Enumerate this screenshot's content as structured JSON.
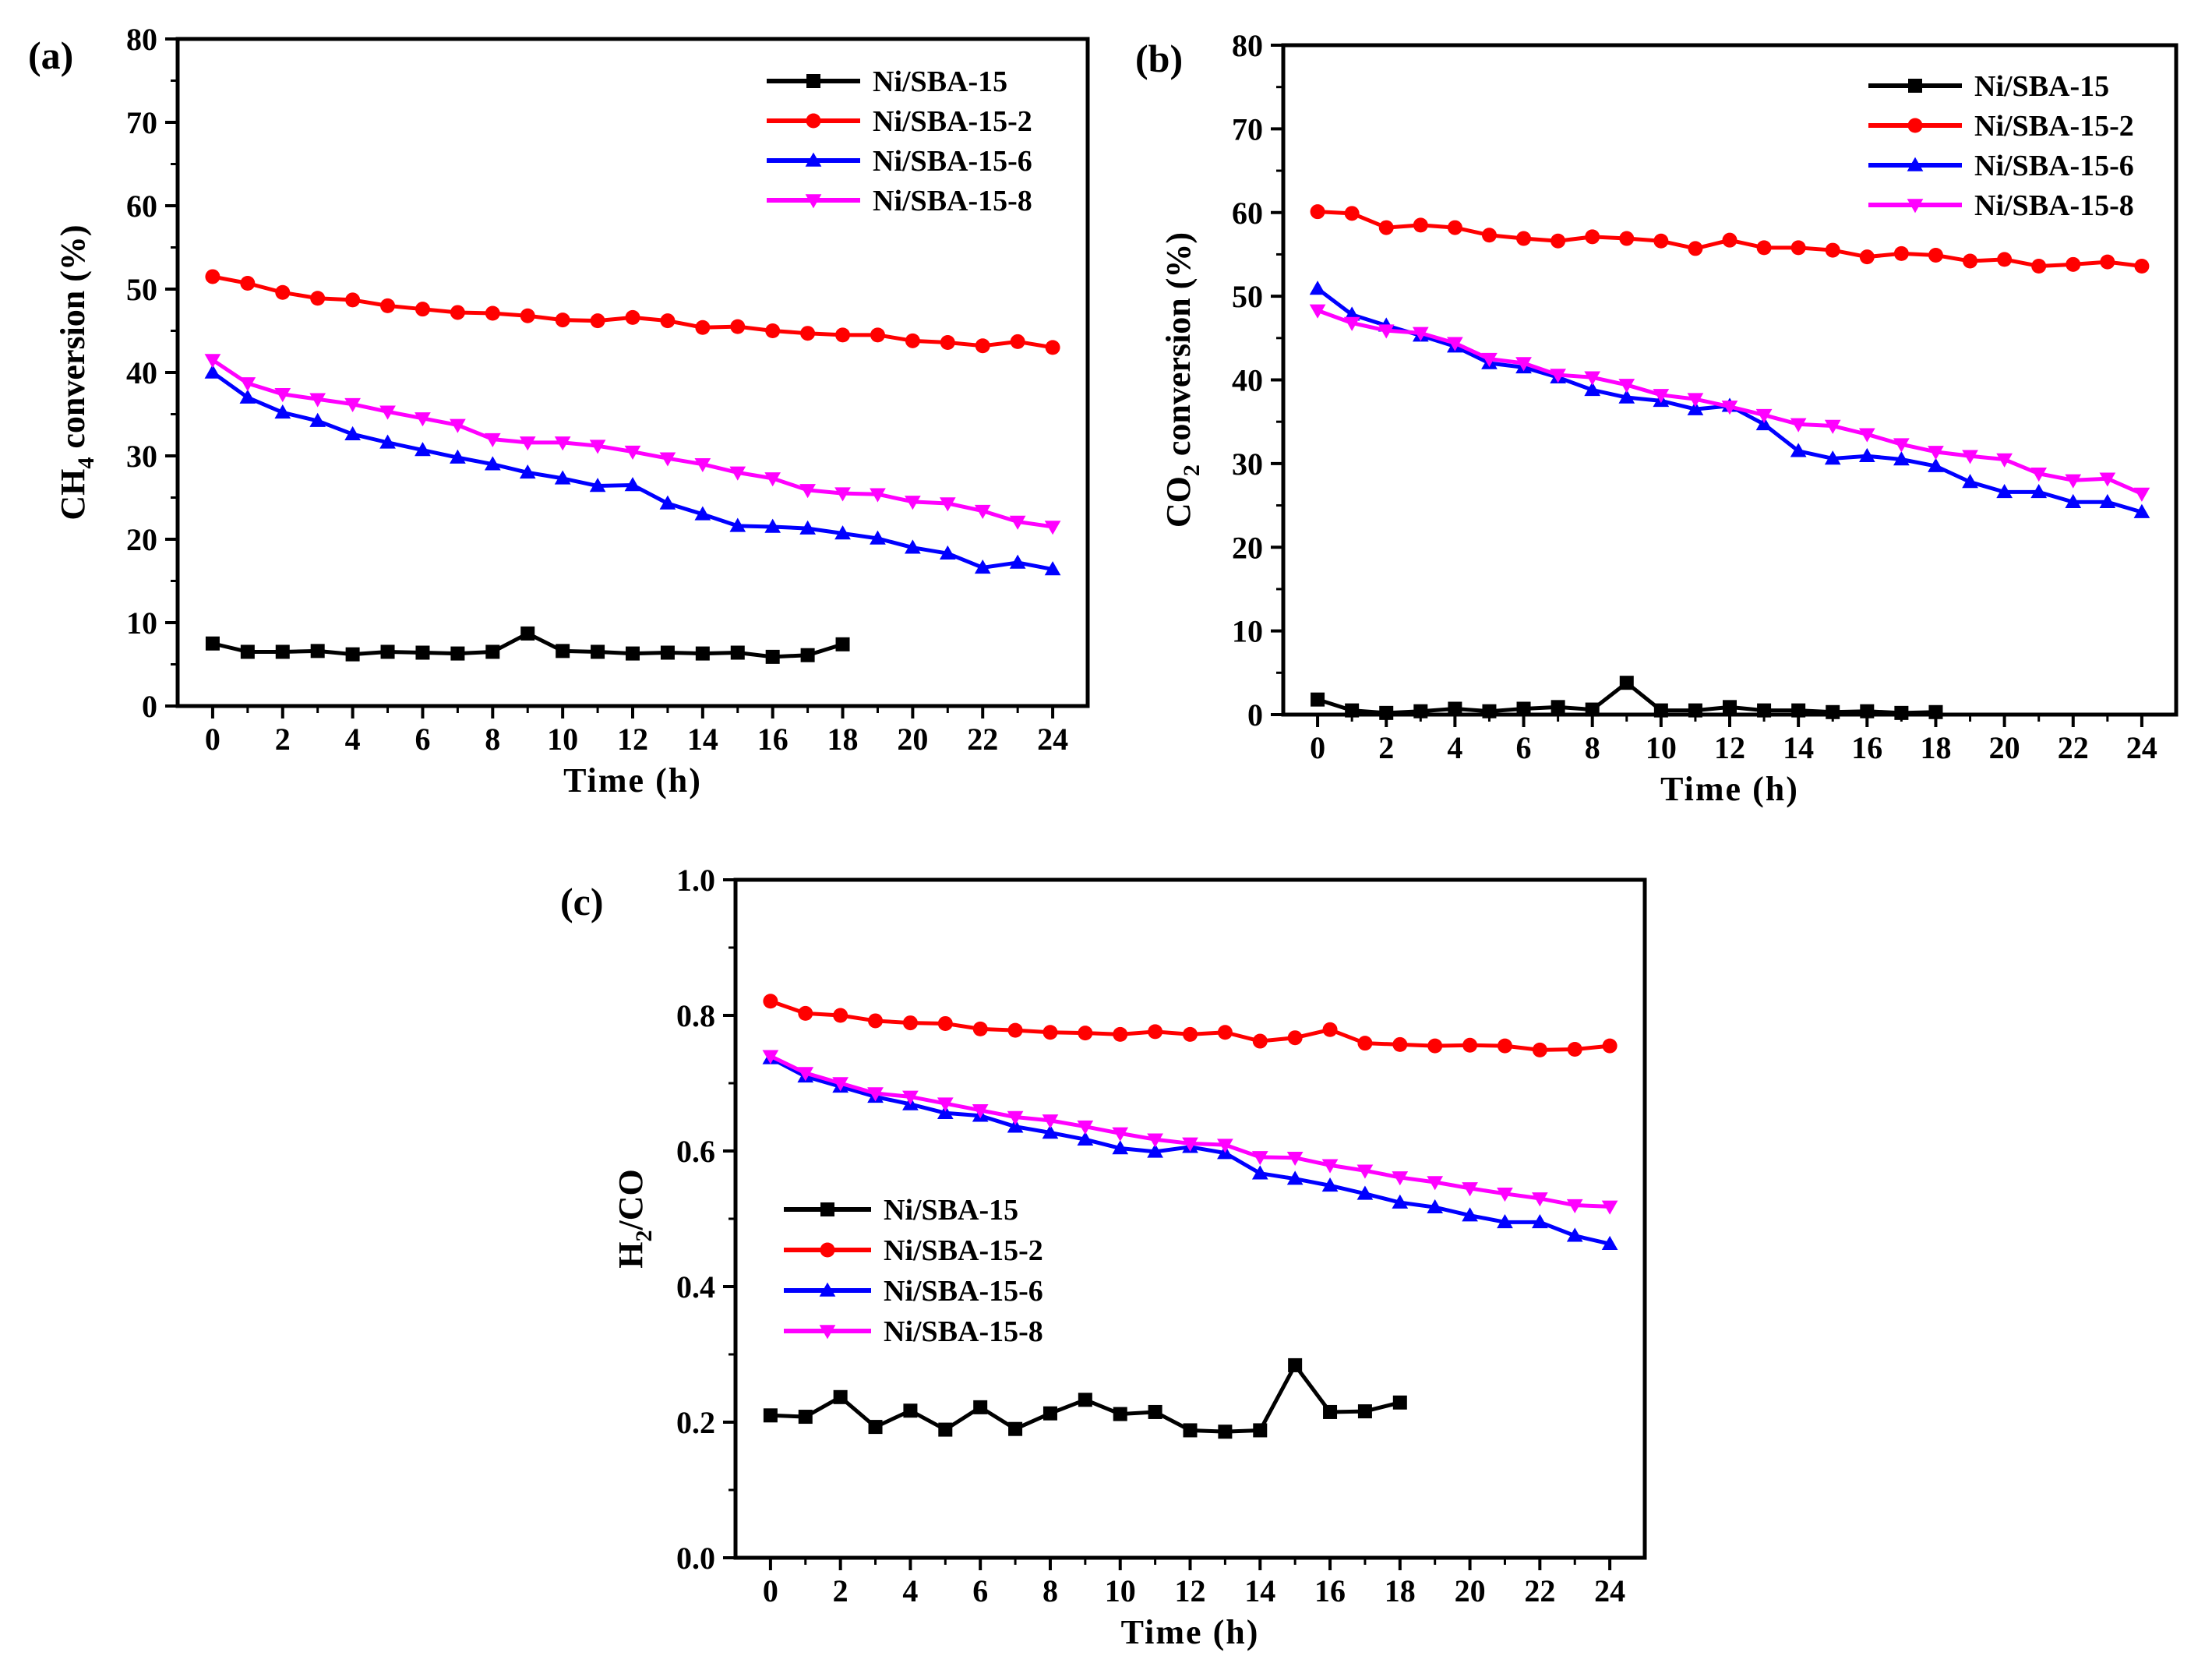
{
  "colors": {
    "Ni/SBA-15": "#000000",
    "Ni/SBA-15-2": "#ff0000",
    "Ni/SBA-15-6": "#0000ff",
    "Ni/SBA-15-8": "#ff00ff"
  },
  "chart_data": [
    {
      "panel": "(a)",
      "type": "line",
      "title": "",
      "xlabel": "Time (h)",
      "ylabel": "CH4 conversion (%)",
      "ylabel_main": "CH",
      "ylabel_sub": "4",
      "ylabel_rest": " conversion (%)",
      "xlim": [
        -1,
        25
      ],
      "ylim": [
        0,
        80
      ],
      "xticks": [
        0,
        2,
        4,
        6,
        8,
        10,
        12,
        14,
        16,
        18,
        20,
        22,
        24
      ],
      "yticks": [
        0,
        10,
        20,
        30,
        40,
        50,
        60,
        70,
        80
      ],
      "legend_position": "top-right",
      "series": [
        {
          "name": "Ni/SBA-15",
          "marker": "square",
          "x": [
            0,
            1,
            2,
            3,
            4,
            5,
            6,
            7,
            8,
            9,
            10,
            11,
            12,
            13,
            14,
            15,
            16,
            17,
            18
          ],
          "values": [
            7.5,
            6.5,
            6.5,
            6.6,
            6.2,
            6.5,
            6.4,
            6.3,
            6.5,
            8.7,
            6.6,
            6.5,
            6.3,
            6.4,
            6.3,
            6.4,
            5.9,
            6.1,
            7.4
          ]
        },
        {
          "name": "Ni/SBA-15-2",
          "marker": "circle",
          "x": [
            0,
            1,
            2,
            3,
            4,
            5,
            6,
            7,
            8,
            9,
            10,
            11,
            12,
            13,
            14,
            15,
            16,
            17,
            18,
            19,
            20,
            21,
            22,
            23,
            24
          ],
          "values": [
            51.5,
            50.7,
            49.6,
            48.9,
            48.7,
            48.0,
            47.6,
            47.2,
            47.1,
            46.8,
            46.3,
            46.2,
            46.6,
            46.2,
            45.4,
            45.5,
            45.0,
            44.7,
            44.5,
            44.5,
            43.8,
            43.6,
            43.2,
            43.7,
            43.0
          ]
        },
        {
          "name": "Ni/SBA-15-6",
          "marker": "triangle-up",
          "x": [
            0,
            1,
            2,
            3,
            4,
            5,
            6,
            7,
            8,
            9,
            10,
            11,
            12,
            13,
            14,
            15,
            16,
            17,
            18,
            19,
            20,
            21,
            22,
            23,
            24
          ],
          "values": [
            40.0,
            37.0,
            35.2,
            34.2,
            32.6,
            31.6,
            30.7,
            29.8,
            29.0,
            28.0,
            27.3,
            26.4,
            26.5,
            24.3,
            23.0,
            21.6,
            21.5,
            21.3,
            20.7,
            20.1,
            19.0,
            18.3,
            16.6,
            17.2,
            16.4
          ]
        },
        {
          "name": "Ni/SBA-15-8",
          "marker": "triangle-down",
          "x": [
            0,
            1,
            2,
            3,
            4,
            5,
            6,
            7,
            8,
            9,
            10,
            11,
            12,
            13,
            14,
            15,
            16,
            17,
            18,
            19,
            20,
            21,
            22,
            23,
            24
          ],
          "values": [
            41.5,
            38.7,
            37.4,
            36.8,
            36.2,
            35.3,
            34.5,
            33.7,
            32.0,
            31.6,
            31.6,
            31.2,
            30.5,
            29.7,
            29.0,
            28.0,
            27.3,
            25.9,
            25.5,
            25.4,
            24.5,
            24.3,
            23.4,
            22.1,
            21.5
          ]
        }
      ]
    },
    {
      "panel": "(b)",
      "type": "line",
      "title": "",
      "xlabel": "Time (h)",
      "ylabel": "CO2 conversion (%)",
      "ylabel_main": "CO",
      "ylabel_sub": "2",
      "ylabel_rest": " conversion (%)",
      "xlim": [
        -1,
        25
      ],
      "ylim": [
        0,
        80
      ],
      "xticks": [
        0,
        2,
        4,
        6,
        8,
        10,
        12,
        14,
        16,
        18,
        20,
        22,
        24
      ],
      "yticks": [
        0,
        10,
        20,
        30,
        40,
        50,
        60,
        70,
        80
      ],
      "legend_position": "top-right",
      "series": [
        {
          "name": "Ni/SBA-15",
          "marker": "square",
          "x": [
            0,
            1,
            2,
            3,
            4,
            5,
            6,
            7,
            8,
            9,
            10,
            11,
            12,
            13,
            14,
            15,
            16,
            17,
            18
          ],
          "values": [
            1.8,
            0.5,
            0.2,
            0.4,
            0.7,
            0.4,
            0.7,
            0.9,
            0.6,
            3.8,
            0.5,
            0.5,
            0.9,
            0.5,
            0.5,
            0.3,
            0.4,
            0.2,
            0.3
          ]
        },
        {
          "name": "Ni/SBA-15-2",
          "marker": "circle",
          "x": [
            0,
            1,
            2,
            3,
            4,
            5,
            6,
            7,
            8,
            9,
            10,
            11,
            12,
            13,
            14,
            15,
            16,
            17,
            18,
            19,
            20,
            21,
            22,
            23,
            24
          ],
          "values": [
            60.1,
            59.9,
            58.2,
            58.5,
            58.2,
            57.3,
            56.9,
            56.6,
            57.1,
            56.9,
            56.6,
            55.7,
            56.7,
            55.8,
            55.8,
            55.5,
            54.7,
            55.1,
            54.9,
            54.2,
            54.4,
            53.6,
            53.8,
            54.1,
            53.6
          ]
        },
        {
          "name": "Ni/SBA-15-6",
          "marker": "triangle-up",
          "x": [
            0,
            1,
            2,
            3,
            4,
            5,
            6,
            7,
            8,
            9,
            10,
            11,
            12,
            13,
            14,
            15,
            16,
            17,
            18,
            19,
            20,
            21,
            22,
            23,
            24
          ],
          "values": [
            50.9,
            47.8,
            46.5,
            45.3,
            44.0,
            42.0,
            41.5,
            40.3,
            38.8,
            37.9,
            37.5,
            36.5,
            36.9,
            34.7,
            31.5,
            30.6,
            30.9,
            30.5,
            29.7,
            27.8,
            26.6,
            26.6,
            25.4,
            25.4,
            24.2
          ]
        },
        {
          "name": "Ni/SBA-15-8",
          "marker": "triangle-down",
          "x": [
            0,
            1,
            2,
            3,
            4,
            5,
            6,
            7,
            8,
            9,
            10,
            11,
            12,
            13,
            14,
            15,
            16,
            17,
            18,
            19,
            20,
            21,
            22,
            23,
            24
          ],
          "values": [
            48.3,
            46.8,
            45.9,
            45.6,
            44.4,
            42.5,
            42.0,
            40.6,
            40.3,
            39.4,
            38.2,
            37.7,
            36.8,
            35.8,
            34.7,
            34.5,
            33.5,
            32.3,
            31.4,
            30.9,
            30.5,
            28.8,
            28.0,
            28.2,
            26.4
          ]
        }
      ]
    },
    {
      "panel": "(c)",
      "type": "line",
      "title": "",
      "xlabel": "Time (h)",
      "ylabel": "H2/CO",
      "ylabel_main": "H",
      "ylabel_sub": "2",
      "ylabel_rest": "/CO",
      "xlim": [
        -1,
        25
      ],
      "ylim": [
        0.0,
        1.0
      ],
      "xticks": [
        0,
        2,
        4,
        6,
        8,
        10,
        12,
        14,
        16,
        18,
        20,
        22,
        24
      ],
      "yticks": [
        "0.0",
        "0.2",
        "0.4",
        "0.6",
        "0.8",
        "1.0"
      ],
      "legend_position": "lower-left",
      "series": [
        {
          "name": "Ni/SBA-15",
          "marker": "square",
          "x": [
            0,
            1,
            2,
            3,
            4,
            5,
            6,
            7,
            8,
            9,
            10,
            11,
            12,
            13,
            14,
            15,
            16,
            17,
            18
          ],
          "values": [
            0.21,
            0.208,
            0.237,
            0.193,
            0.217,
            0.189,
            0.222,
            0.19,
            0.213,
            0.233,
            0.212,
            0.215,
            0.188,
            0.186,
            0.188,
            0.284,
            0.215,
            0.216,
            0.229
          ]
        },
        {
          "name": "Ni/SBA-15-2",
          "marker": "circle",
          "x": [
            0,
            1,
            2,
            3,
            4,
            5,
            6,
            7,
            8,
            9,
            10,
            11,
            12,
            13,
            14,
            15,
            16,
            17,
            18,
            19,
            20,
            21,
            22,
            23,
            24
          ],
          "values": [
            0.821,
            0.803,
            0.8,
            0.792,
            0.789,
            0.788,
            0.78,
            0.778,
            0.775,
            0.774,
            0.772,
            0.776,
            0.772,
            0.775,
            0.762,
            0.767,
            0.779,
            0.759,
            0.757,
            0.755,
            0.756,
            0.755,
            0.749,
            0.75,
            0.755
          ]
        },
        {
          "name": "Ni/SBA-15-6",
          "marker": "triangle-up",
          "x": [
            0,
            1,
            2,
            3,
            4,
            5,
            6,
            7,
            8,
            9,
            10,
            11,
            12,
            13,
            14,
            15,
            16,
            17,
            18,
            19,
            20,
            21,
            22,
            23,
            24
          ],
          "values": [
            0.737,
            0.71,
            0.695,
            0.68,
            0.669,
            0.656,
            0.652,
            0.636,
            0.627,
            0.617,
            0.604,
            0.599,
            0.606,
            0.597,
            0.567,
            0.559,
            0.549,
            0.537,
            0.524,
            0.517,
            0.505,
            0.495,
            0.495,
            0.475,
            0.463
          ]
        },
        {
          "name": "Ni/SBA-15-8",
          "marker": "triangle-down",
          "x": [
            0,
            1,
            2,
            3,
            4,
            5,
            6,
            7,
            8,
            9,
            10,
            11,
            12,
            13,
            14,
            15,
            16,
            17,
            18,
            19,
            20,
            21,
            22,
            23,
            24
          ],
          "values": [
            0.74,
            0.715,
            0.7,
            0.685,
            0.68,
            0.67,
            0.66,
            0.65,
            0.645,
            0.636,
            0.626,
            0.617,
            0.611,
            0.609,
            0.591,
            0.59,
            0.579,
            0.571,
            0.561,
            0.554,
            0.545,
            0.537,
            0.53,
            0.52,
            0.518
          ]
        }
      ]
    }
  ]
}
